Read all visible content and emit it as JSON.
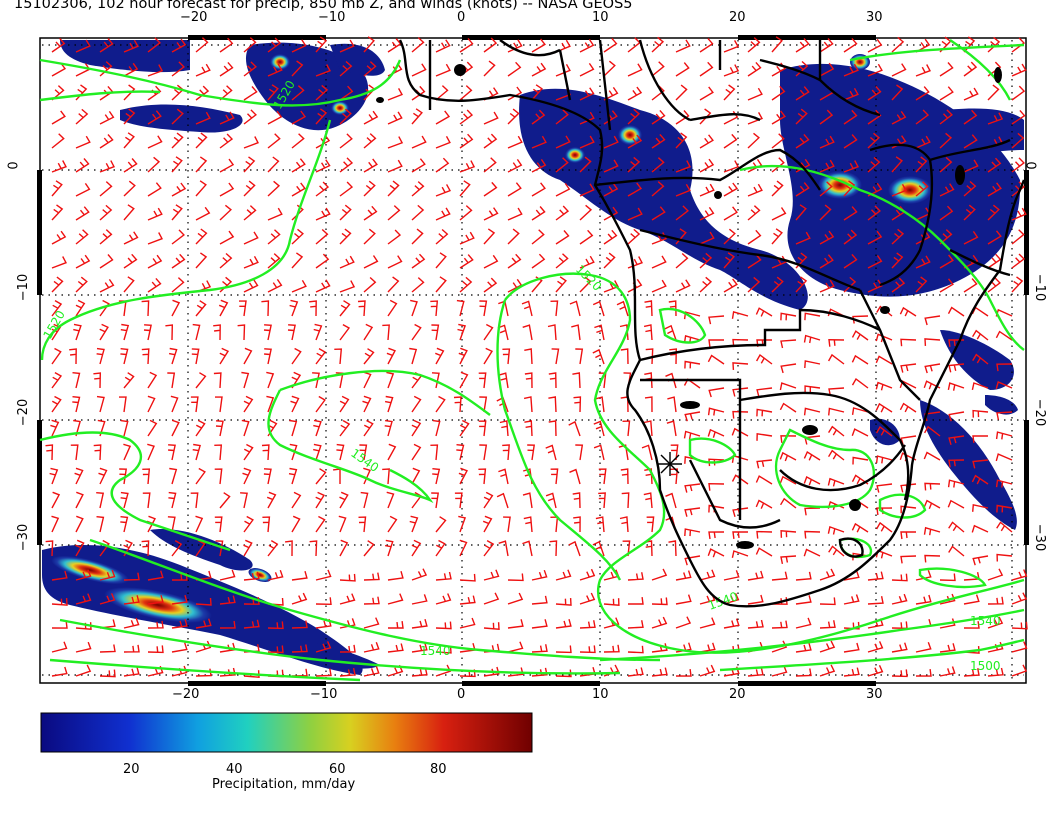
{
  "title": "15102306, 102 hour forecast for precip, 850 mb Z, and winds (knots) -- NASA GEOS5",
  "axes": {
    "lon_ticks": [
      "−20",
      "−10",
      "0",
      "10",
      "20",
      "30"
    ],
    "lat_ticks": [
      "0",
      "−10",
      "−20",
      "−30"
    ]
  },
  "contour_labels": [
    "1520",
    "1520",
    "1540",
    "1540",
    "1540",
    "1520",
    "1500",
    "1540"
  ],
  "colorbar": {
    "ticks": [
      "20",
      "40",
      "60",
      "80"
    ],
    "label": "Precipitation, mm/day"
  },
  "colors": {
    "precip_low": "#101c8c",
    "precip_high": "#8b0000",
    "contour": "#22ee22",
    "wind_barb": "#ee1111",
    "coastline": "#000000"
  }
}
